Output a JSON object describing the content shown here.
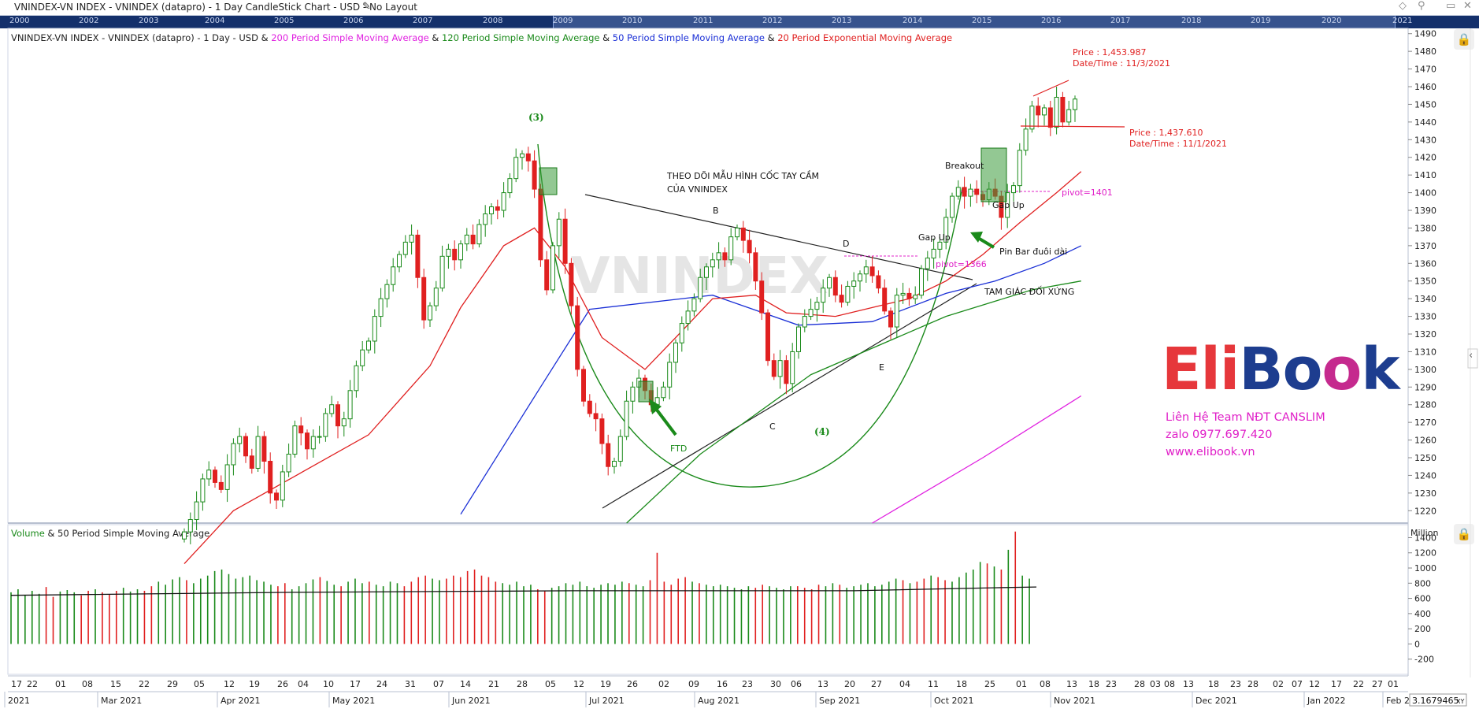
{
  "window": {
    "title": "VNINDEX-VN INDEX - VNINDEX (datapro) - 1 Day CandleStick Chart - USD - No Layout",
    "edit_icon": "pencil-icon",
    "buttons": [
      "diamond-icon",
      "pin-icon",
      "restore-icon",
      "close-icon"
    ]
  },
  "navigator": {
    "years": [
      "2000",
      "2002",
      "2003",
      "2004",
      "2005",
      "2006",
      "2007",
      "2008",
      "2009",
      "2010",
      "2011",
      "2012",
      "2013",
      "2014",
      "2015",
      "2016",
      "2017",
      "2018",
      "2019",
      "2020",
      "2021"
    ]
  },
  "legend": {
    "prefix": "VNINDEX-VN INDEX - VNINDEX (datapro) - 1 Day - USD &",
    "sma200": "200 Period Simple Moving Average",
    "amp1": "&",
    "sma120": "120 Period Simple Moving Average",
    "amp2": "&",
    "sma50": "50 Period Simple Moving Average",
    "amp3": "&",
    "ema20": "20 Period Exponential Moving Average"
  },
  "volume_legend": {
    "volume": "Volume",
    "rest": "& 50 Period Simple Moving Average",
    "unit": "Million"
  },
  "watermark": "VNINDEX",
  "logo": {
    "part1": "Eli",
    "part2": "Bo",
    "part3": "o",
    "part4": "k"
  },
  "contact": {
    "line1": "Liên Hệ Team NĐT CANSLIM",
    "line2": "zalo 0977.697.420",
    "line3": "www.elibook.vn"
  },
  "readout": "3.1679465",
  "readout_btn": "XY",
  "annotations": {
    "price_top": "Price : 1,453.987",
    "date_top": "Date/Time : 11/3/2021",
    "price_mid": "Price : 1,437.610",
    "date_mid": "Date/Time : 11/1/2021",
    "pivot_high": "pivot=1401",
    "pivot_low": "pivot=1366",
    "label_3": "(3)",
    "label_4": "(4)",
    "title_line1": "THEO DÕI MẪU HÌNH CỐC TAY CẦM",
    "title_line2": "CỦA VNINDEX",
    "B": "B",
    "C": "C",
    "D": "D",
    "E": "E",
    "ftd": "FTD",
    "breakout": "Breakout",
    "gap_up_1": "Gap Up",
    "gap_up_2": "Gap Up",
    "pin_bar": "Pin Bar đuôi dài",
    "triangle": "TAM GIÁC ĐỐI XỨNG"
  },
  "chart_data": {
    "type": "candlestick",
    "yticks": [
      1220,
      1230,
      1240,
      1250,
      1260,
      1270,
      1280,
      1290,
      1300,
      1310,
      1320,
      1330,
      1340,
      1350,
      1360,
      1370,
      1380,
      1390,
      1400,
      1410,
      1420,
      1430,
      1440,
      1450,
      1460,
      1470,
      1480,
      1490
    ],
    "ylim": [
      1213,
      1493
    ],
    "volume_ticks": [
      -200,
      0,
      200,
      400,
      600,
      800,
      1000,
      1200,
      1400
    ],
    "volume_ylim": [
      -400,
      1550
    ],
    "x_day_labels": [
      "17",
      "22",
      "01",
      "08",
      "15",
      "22",
      "29",
      "05",
      "12",
      "19",
      "26",
      "04",
      "10",
      "17",
      "24",
      "31",
      "07",
      "14",
      "21",
      "28",
      "05",
      "12",
      "19",
      "26",
      "02",
      "09",
      "16",
      "23",
      "30",
      "06",
      "13",
      "20",
      "27",
      "04",
      "11",
      "18",
      "25",
      "01",
      "08",
      "13",
      "18",
      "23",
      "28",
      "03",
      "08",
      "13",
      "18",
      "23",
      "28",
      "02",
      "07",
      "12",
      "17",
      "22",
      "27",
      "01"
    ],
    "x_month_labels": [
      "2021",
      "Mar 2021",
      "Apr 2021",
      "May 2021",
      "Jun 2021",
      "Jul 2021",
      "Aug 2021",
      "Sep 2021",
      "Oct 2021",
      "Nov 2021",
      "Dec 2021",
      "Jan 2022",
      "Feb 2"
    ],
    "candles_close": [
      1208,
      1215,
      1225,
      1238,
      1243,
      1236,
      1232,
      1246,
      1258,
      1262,
      1251,
      1244,
      1262,
      1248,
      1230,
      1226,
      1242,
      1252,
      1268,
      1264,
      1255,
      1262,
      1262,
      1275,
      1280,
      1268,
      1272,
      1288,
      1302,
      1311,
      1316,
      1330,
      1340,
      1348,
      1358,
      1365,
      1372,
      1376,
      1352,
      1328,
      1336,
      1346,
      1364,
      1368,
      1362,
      1371,
      1376,
      1371,
      1382,
      1388,
      1392,
      1390,
      1400,
      1408,
      1420,
      1422,
      1418,
      1402,
      1362,
      1345,
      1370,
      1385,
      1360,
      1336,
      1300,
      1282,
      1275,
      1272,
      1258,
      1245,
      1248,
      1262,
      1282,
      1290,
      1295,
      1288,
      1280,
      1284,
      1290,
      1304,
      1315,
      1326,
      1333,
      1340,
      1352,
      1358,
      1362,
      1366,
      1362,
      1375,
      1380,
      1373,
      1366,
      1350,
      1332,
      1305,
      1296,
      1305,
      1292,
      1310,
      1324,
      1330,
      1334,
      1338,
      1346,
      1352,
      1342,
      1338,
      1347,
      1350,
      1354,
      1358,
      1353,
      1346,
      1333,
      1324,
      1342,
      1343,
      1340,
      1342,
      1357,
      1363,
      1368,
      1372,
      1386,
      1398,
      1403,
      1398,
      1402,
      1399,
      1396,
      1402,
      1398,
      1386,
      1400,
      1404,
      1424,
      1436,
      1449,
      1444,
      1448,
      1437,
      1454,
      1440,
      1447,
      1453
    ],
    "ema20_points": [
      [
        0,
        1190
      ],
      [
        8,
        1220
      ],
      [
        30,
        1263
      ],
      [
        40,
        1302
      ],
      [
        45,
        1335
      ],
      [
        52,
        1370
      ],
      [
        57,
        1380
      ],
      [
        62,
        1358
      ],
      [
        68,
        1318
      ],
      [
        75,
        1300
      ],
      [
        80,
        1318
      ],
      [
        86,
        1340
      ],
      [
        93,
        1342
      ],
      [
        98,
        1332
      ],
      [
        106,
        1330
      ],
      [
        112,
        1335
      ],
      [
        118,
        1340
      ],
      [
        124,
        1350
      ],
      [
        130,
        1365
      ],
      [
        136,
        1383
      ],
      [
        142,
        1400
      ],
      [
        146,
        1412
      ]
    ],
    "sma50_points": [
      [
        45,
        1218
      ],
      [
        58,
        1290
      ],
      [
        66,
        1334
      ],
      [
        86,
        1342
      ],
      [
        100,
        1325
      ],
      [
        112,
        1327
      ],
      [
        124,
        1343
      ],
      [
        132,
        1350
      ],
      [
        140,
        1360
      ],
      [
        146,
        1370
      ]
    ],
    "sma120_points": [
      [
        72,
        1213
      ],
      [
        84,
        1252
      ],
      [
        102,
        1297
      ],
      [
        124,
        1330
      ],
      [
        138,
        1345
      ],
      [
        146,
        1350
      ]
    ],
    "sma200_points": [
      [
        112,
        1213
      ],
      [
        130,
        1250
      ],
      [
        146,
        1285
      ]
    ],
    "volume_values": [
      680,
      720,
      640,
      700,
      660,
      750,
      620,
      690,
      710,
      680,
      640,
      700,
      720,
      680,
      650,
      700,
      740,
      690,
      720,
      700,
      760,
      820,
      780,
      850,
      880,
      840,
      800,
      860,
      900,
      960,
      980,
      920,
      860,
      880,
      900,
      840,
      820,
      780,
      760,
      800,
      720,
      760,
      800,
      850,
      880,
      830,
      780,
      760,
      820,
      860,
      800,
      820,
      780,
      760,
      820,
      800,
      760,
      820,
      880,
      900,
      860,
      840,
      860,
      900,
      880,
      960,
      980,
      900,
      880,
      820,
      800,
      780,
      820,
      760,
      780,
      720,
      700,
      740,
      760,
      800,
      780,
      820,
      760,
      740,
      780,
      800,
      780,
      820,
      800,
      780,
      760,
      840,
      1200,
      820,
      780,
      860,
      880,
      820,
      800,
      780,
      760,
      780,
      760,
      740,
      720,
      760,
      740,
      780,
      760,
      740,
      720,
      760,
      760,
      740,
      720,
      780,
      760,
      800,
      780,
      740,
      760,
      780,
      800,
      760,
      780,
      820,
      860,
      840,
      800,
      820,
      860,
      900,
      880,
      840,
      820,
      880,
      940,
      980,
      1080,
      1060,
      1020,
      980,
      1240,
      1480,
      900,
      860
    ],
    "volume_sma50": [
      [
        0,
        640
      ],
      [
        40,
        680
      ],
      [
        80,
        700
      ],
      [
        120,
        700
      ],
      [
        140,
        740
      ],
      [
        146,
        750
      ]
    ]
  }
}
